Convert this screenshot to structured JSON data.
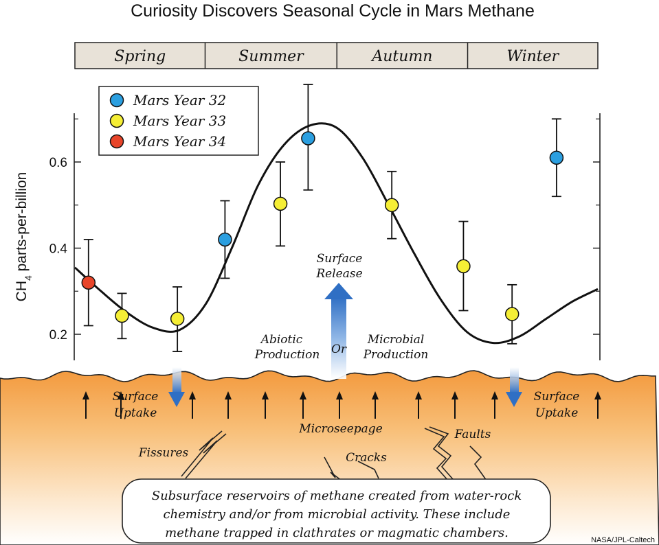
{
  "chart_data": {
    "type": "scatter",
    "title": "Curiosity Discovers Seasonal Cycle in Mars Methane",
    "ylabel": "CH₄ parts-per-billion",
    "ylim": [
      0.14,
      0.72
    ],
    "xlim": [
      0,
      100
    ],
    "yticks": [
      0.2,
      0.4,
      0.6
    ],
    "seasons": [
      {
        "label": "Spring",
        "start": 0,
        "end": 24.9
      },
      {
        "label": "Summer",
        "start": 24.9,
        "end": 50.1
      },
      {
        "label": "Autumn",
        "start": 50.1,
        "end": 75.1
      },
      {
        "label": "Winter",
        "start": 75.1,
        "end": 100
      }
    ],
    "series": [
      {
        "name": "Mars Year 32",
        "color": "#2b9fe0",
        "points": [
          {
            "x": 28.7,
            "y": 0.42,
            "ylow": 0.33,
            "yhigh": 0.51
          },
          {
            "x": 44.6,
            "y": 0.655,
            "ylow": 0.535,
            "yhigh": 0.78
          },
          {
            "x": 92.1,
            "y": 0.61,
            "ylow": 0.52,
            "yhigh": 0.7
          }
        ]
      },
      {
        "name": "Mars Year 33",
        "color": "#f5ee35",
        "points": [
          {
            "x": 9.0,
            "y": 0.243,
            "ylow": 0.19,
            "yhigh": 0.295
          },
          {
            "x": 19.6,
            "y": 0.236,
            "ylow": 0.16,
            "yhigh": 0.31
          },
          {
            "x": 39.3,
            "y": 0.503,
            "ylow": 0.405,
            "yhigh": 0.6
          },
          {
            "x": 60.6,
            "y": 0.5,
            "ylow": 0.422,
            "yhigh": 0.578
          },
          {
            "x": 74.3,
            "y": 0.358,
            "ylow": 0.255,
            "yhigh": 0.462
          },
          {
            "x": 83.6,
            "y": 0.247,
            "ylow": 0.178,
            "yhigh": 0.315
          }
        ]
      },
      {
        "name": "Mars Year 34",
        "color": "#e8452a",
        "points": [
          {
            "x": 2.6,
            "y": 0.32,
            "ylow": 0.22,
            "yhigh": 0.42
          }
        ]
      }
    ],
    "curve": {
      "x": [
        0,
        5,
        10,
        15,
        20,
        25,
        30,
        35,
        40,
        45,
        50,
        55,
        60,
        65,
        70,
        75,
        80,
        85,
        90,
        95,
        100
      ],
      "y": [
        0.355,
        0.3,
        0.25,
        0.215,
        0.21,
        0.27,
        0.4,
        0.545,
        0.64,
        0.685,
        0.68,
        0.61,
        0.5,
        0.385,
        0.28,
        0.205,
        0.18,
        0.195,
        0.235,
        0.275,
        0.305
      ]
    },
    "legend": "top-left",
    "grid": false
  },
  "annotations": {
    "surface_release": "Surface\nRelease",
    "abiotic": "Abiotic\nProduction",
    "or_word": "Or",
    "microbial": "Microbial\nProduction",
    "uptake_left": "Surface\nUptake",
    "uptake_right": "Surface\nUptake",
    "microseepage": "Microseepage",
    "fissures": "Fissures",
    "cracks": "Cracks",
    "faults": "Faults",
    "reservoir_text": "Subsurface reservoirs of methane created from water-rock\nchemistry and/or from microbial activity. These include\nmethane trapped in clathrates or magmatic chambers.",
    "credit": "NASA/JPL-Caltech"
  },
  "colors": {
    "ground_top": "#f5a04a",
    "ground_bottom": "#ffffff",
    "season_bar": "#e8e2d8",
    "release_arrow": "#2f6fc4",
    "curve": "#111111"
  }
}
